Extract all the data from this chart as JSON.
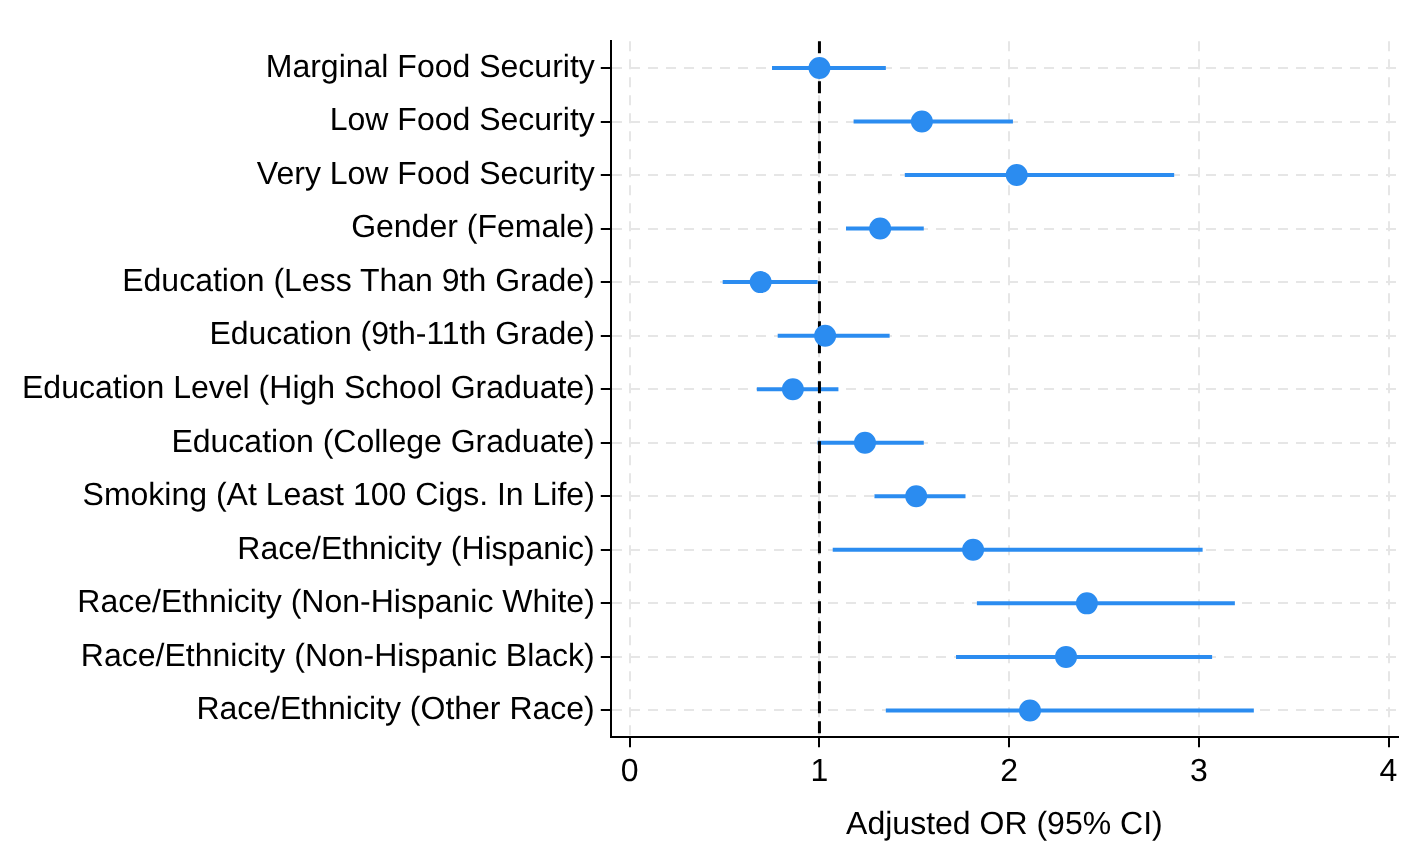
{
  "chart_data": {
    "type": "scatter",
    "orientation": "horizontal",
    "xlabel": "Adjusted OR (95% CI)",
    "categories": [
      "Marginal Food Security",
      "Low Food Security",
      "Very Low Food Security",
      "Gender (Female)",
      "Education (Less Than 9th Grade)",
      "Education (9th-11th Grade)",
      "Education Level (High School Graduate)",
      "Education (College Graduate)",
      "Smoking (At Least 100 Cigs. In Life)",
      "Race/Ethnicity (Hispanic)",
      "Race/Ethnicity (Non-Hispanic White)",
      "Race/Ethnicity (Non-Hispanic Black)",
      "Race/Ethnicity (Other Race)"
    ],
    "series": [
      {
        "color": "#2b8cf0",
        "values": [
          1.0,
          1.54,
          2.04,
          1.32,
          0.69,
          1.03,
          0.86,
          1.24,
          1.51,
          1.81,
          2.41,
          2.3,
          2.11
        ],
        "errors": [
          [
            0.75,
            1.35
          ],
          [
            1.18,
            2.02
          ],
          [
            1.45,
            2.87
          ],
          [
            1.14,
            1.55
          ],
          [
            0.49,
            0.99
          ],
          [
            0.78,
            1.37
          ],
          [
            0.67,
            1.1
          ],
          [
            0.99,
            1.55
          ],
          [
            1.29,
            1.77
          ],
          [
            1.07,
            3.02
          ],
          [
            1.83,
            3.19
          ],
          [
            1.72,
            3.07
          ],
          [
            1.35,
            3.29
          ]
        ]
      }
    ],
    "xlim": [
      -0.1,
      4.05
    ],
    "xticks": [
      0,
      1,
      2,
      3,
      4
    ],
    "grid": true,
    "marker": "circle",
    "legend": false,
    "ref_lines": [
      {
        "axis": "x",
        "value": 1,
        "color": "#000000",
        "line_style": "dashed"
      }
    ]
  }
}
